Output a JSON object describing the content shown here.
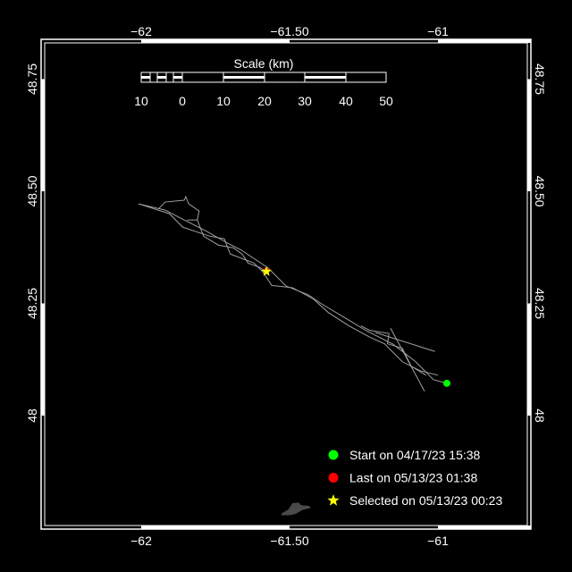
{
  "chart_data": {
    "type": "map",
    "background_color": "#000000",
    "track_color": "#a0a0a0",
    "land_color": "#4a4a4a",
    "lon_range": [
      -62.33,
      -60.69
    ],
    "lat_range": [
      47.75,
      48.84
    ],
    "lon_ticks": [
      -62,
      -61.5,
      -61
    ],
    "lon_tick_labels": [
      "−62",
      "−61.50",
      "−61"
    ],
    "lat_ticks": [
      48.75,
      48.5,
      48.25,
      48
    ],
    "lat_tick_labels": [
      "48.75",
      "48.50",
      "48.25",
      "48"
    ],
    "scale": {
      "title": "Scale (km)",
      "labels": [
        "10",
        "0",
        "10",
        "20",
        "30",
        "40",
        "50"
      ]
    },
    "tracks": [
      [
        [
          -62.009,
          48.472
        ],
        [
          -61.919,
          48.458
        ],
        [
          -61.873,
          48.442
        ],
        [
          -61.783,
          48.412
        ],
        [
          -61.708,
          48.384
        ],
        [
          -61.663,
          48.369
        ],
        [
          -61.572,
          48.329
        ],
        [
          -61.512,
          48.289
        ],
        [
          -61.437,
          48.269
        ],
        [
          -61.392,
          48.249
        ],
        [
          -61.316,
          48.219
        ],
        [
          -61.241,
          48.189
        ],
        [
          -61.151,
          48.159
        ],
        [
          -61.075,
          48.12
        ],
        [
          -61.015,
          48.08
        ],
        [
          -60.97,
          48.072
        ]
      ],
      [
        [
          -62.009,
          48.472
        ],
        [
          -61.905,
          48.45
        ],
        [
          -61.86,
          48.42
        ],
        [
          -61.77,
          48.4
        ],
        [
          -61.72,
          48.394
        ],
        [
          -61.7,
          48.36
        ],
        [
          -61.62,
          48.34
        ],
        [
          -61.59,
          48.32
        ],
        [
          -61.56,
          48.29
        ],
        [
          -61.49,
          48.285
        ],
        [
          -61.42,
          48.26
        ],
        [
          -61.37,
          48.23
        ],
        [
          -61.3,
          48.2
        ],
        [
          -61.23,
          48.175
        ],
        [
          -61.18,
          48.16
        ],
        [
          -61.12,
          48.12
        ],
        [
          -61.06,
          48.1
        ],
        [
          -61.0,
          48.09
        ]
      ],
      [
        [
          -61.94,
          48.462
        ],
        [
          -61.919,
          48.476
        ],
        [
          -61.855,
          48.48
        ],
        [
          -61.85,
          48.488
        ],
        [
          -61.84,
          48.472
        ],
        [
          -61.805,
          48.456
        ],
        [
          -61.811,
          48.436
        ],
        [
          -61.845,
          48.436
        ]
      ],
      [
        [
          -61.811,
          48.436
        ],
        [
          -61.79,
          48.4
        ],
        [
          -61.74,
          48.38
        ],
        [
          -61.69,
          48.374
        ],
        [
          -61.66,
          48.36
        ],
        [
          -61.64,
          48.34
        ],
        [
          -61.6,
          48.33
        ],
        [
          -61.578,
          48.321
        ]
      ],
      [
        [
          -61.21,
          48.185
        ],
        [
          -61.01,
          48.143
        ]
      ],
      [
        [
          -61.16,
          48.195
        ],
        [
          -61.045,
          48.054
        ]
      ],
      [
        [
          -61.26,
          48.2
        ],
        [
          -61.23,
          48.19
        ],
        [
          -61.165,
          48.183
        ],
        [
          -61.17,
          48.16
        ],
        [
          -61.12,
          48.15
        ],
        [
          -61.09,
          48.11
        ],
        [
          -61.04,
          48.09
        ]
      ]
    ],
    "land": [
      [
        -61.527,
        47.782
      ],
      [
        -61.505,
        47.79
      ],
      [
        -61.49,
        47.805
      ],
      [
        -61.47,
        47.806
      ],
      [
        -61.46,
        47.8
      ],
      [
        -61.435,
        47.799
      ],
      [
        -61.428,
        47.794
      ],
      [
        -61.455,
        47.79
      ],
      [
        -61.48,
        47.781
      ],
      [
        -61.5,
        47.778
      ],
      [
        -61.527,
        47.778
      ]
    ],
    "markers": {
      "start": {
        "lon": -60.97,
        "lat": 48.072,
        "color": "#00ff00"
      },
      "last": {
        "lon": -61.578,
        "lat": 48.323,
        "color": "#ff0000"
      },
      "selected": {
        "lon": -61.578,
        "lat": 48.321,
        "color": "#ffff00"
      }
    },
    "legend": {
      "placement": "bottom-right",
      "items": [
        {
          "symbol": "circle",
          "color": "#00ff00",
          "label": "Start on 04/17/23 15:38"
        },
        {
          "symbol": "circle",
          "color": "#ff0000",
          "label": "Last on 05/13/23 01:38"
        },
        {
          "symbol": "star",
          "color": "#ffff00",
          "label": "Selected on 05/13/23 00:23"
        }
      ]
    }
  }
}
